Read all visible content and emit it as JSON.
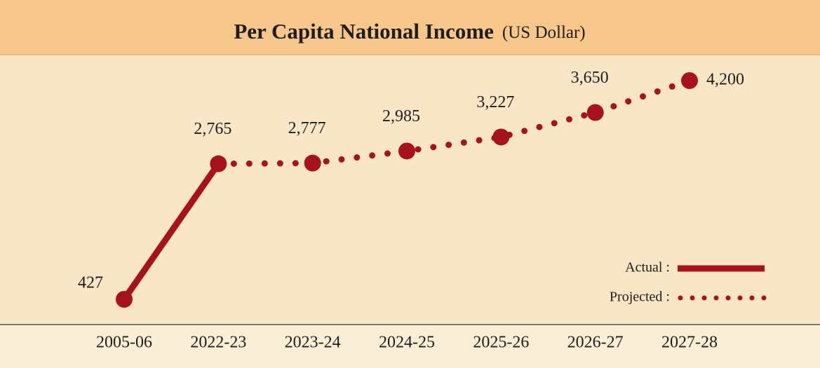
{
  "chart_data": {
    "type": "line",
    "title": "Per Capita National Income",
    "subtitle": "(US Dollar)",
    "categories": [
      "2005-06",
      "2022-23",
      "2023-24",
      "2024-25",
      "2025-26",
      "2026-27",
      "2027-28"
    ],
    "series": [
      {
        "name": "Actual :",
        "color": "#a8121a",
        "style": "solid",
        "values": [
          427,
          2765,
          null,
          null,
          null,
          null,
          null
        ],
        "value_labels": [
          "427",
          "2,765",
          null,
          null,
          null,
          null,
          null
        ]
      },
      {
        "name": "Projected :",
        "color": "#a8121a",
        "style": "dotted",
        "values": [
          null,
          2765,
          2777,
          2985,
          3227,
          3650,
          4200
        ],
        "value_labels": [
          null,
          null,
          "2,777",
          "2,985",
          "3,227",
          "3,650",
          "4,200"
        ]
      }
    ]
  }
}
